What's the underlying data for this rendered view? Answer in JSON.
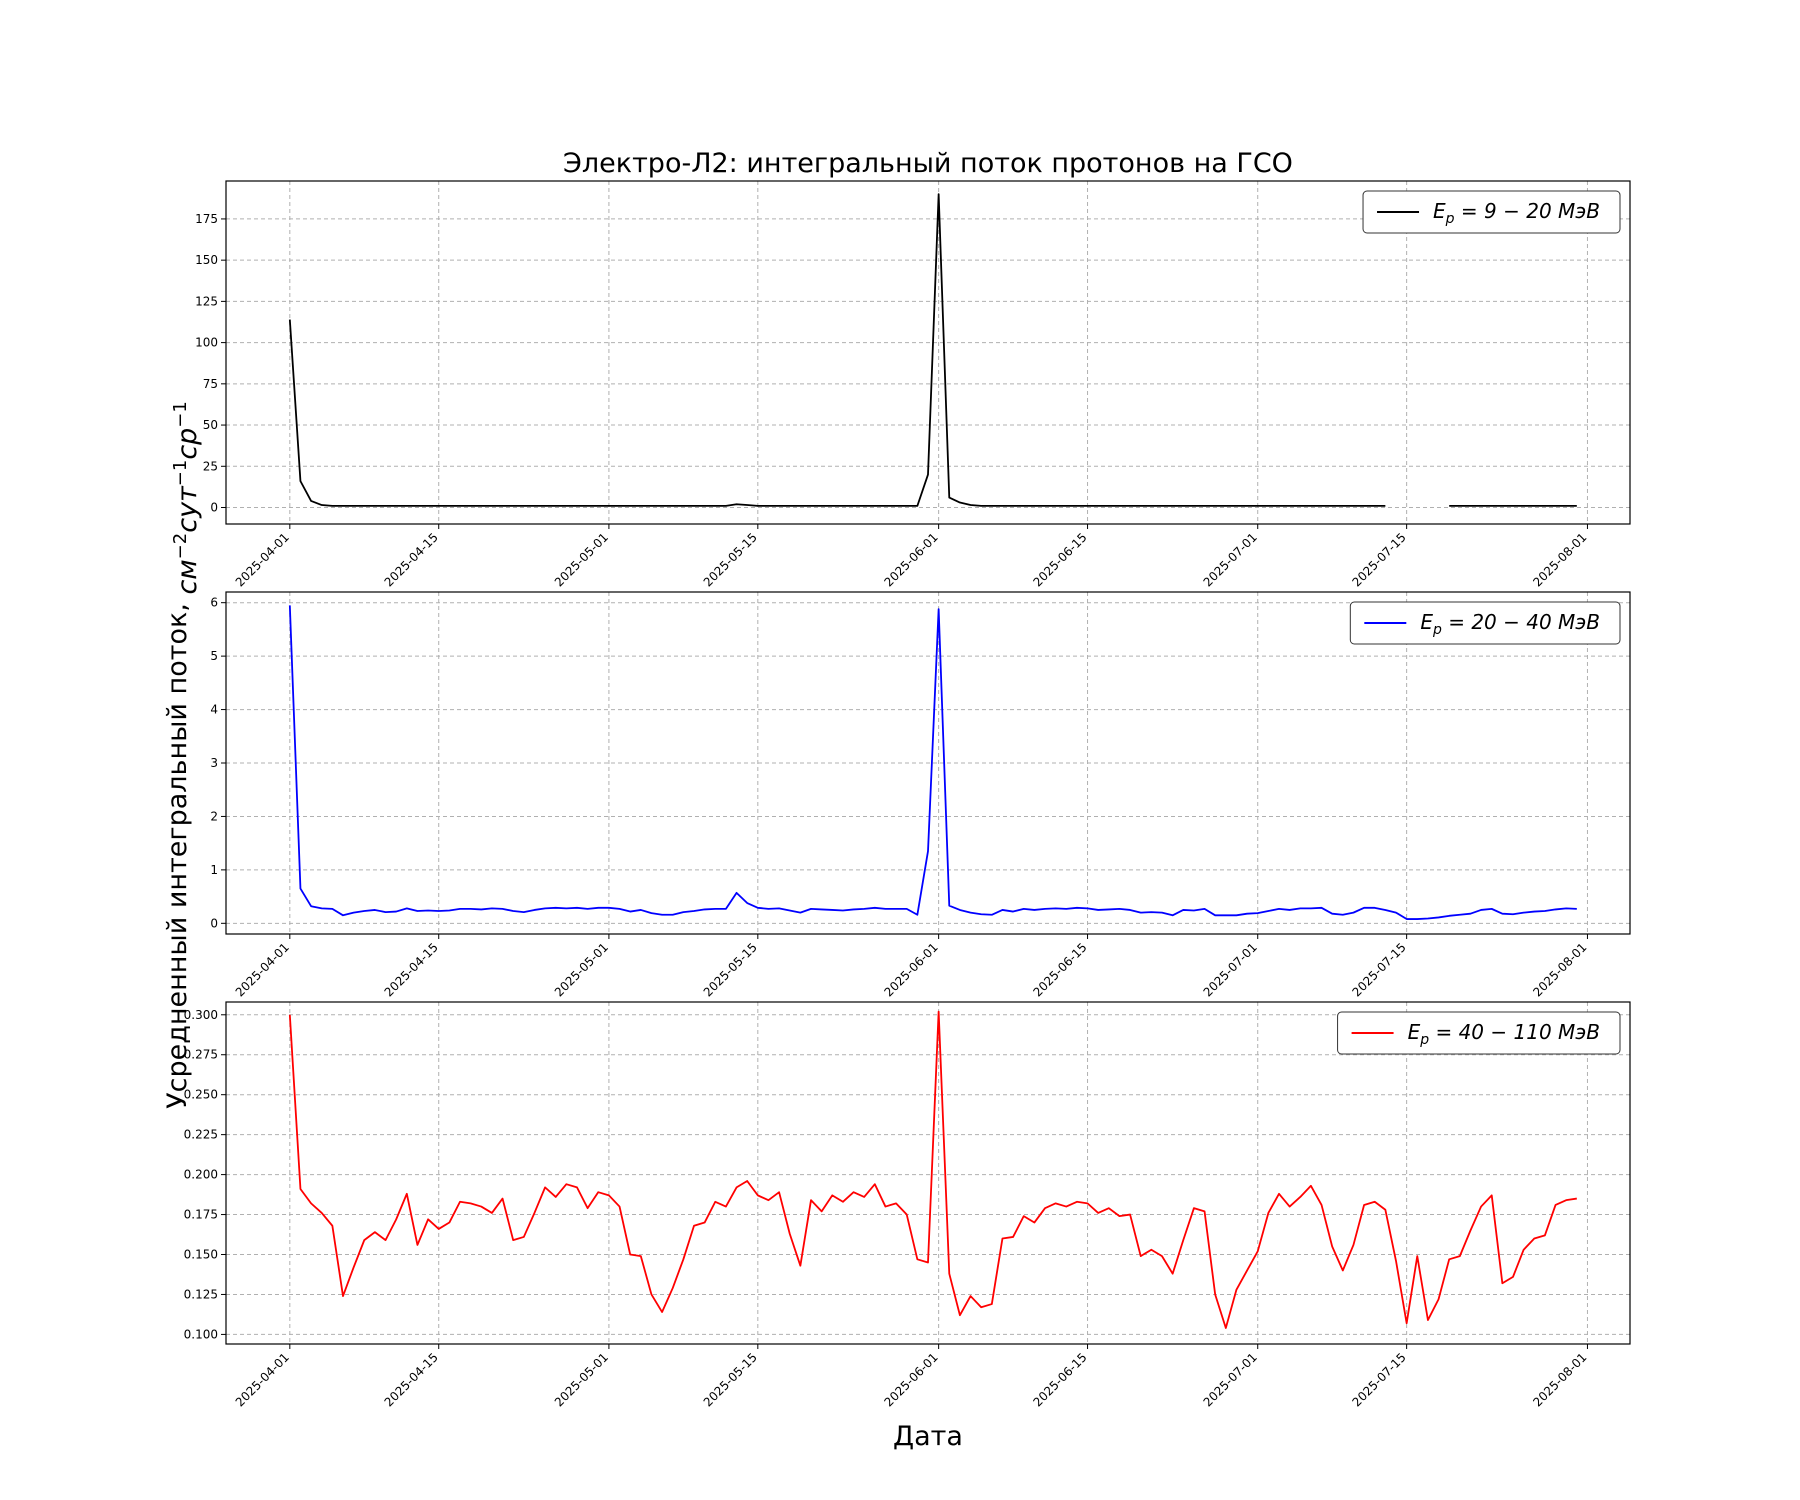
{
  "chart_data": [
    {
      "type": "line",
      "title": "Электро-Л2: интегральный поток протонов на ГСО",
      "color": "#000000",
      "legend": {
        "label": "E_p = 9 − 20 МэВ",
        "sub": "p",
        "range": "9 − 20",
        "unit": "МэВ",
        "placement": "top-right"
      },
      "ylim": [
        -10,
        198
      ],
      "yticks": [
        0,
        25,
        50,
        75,
        100,
        125,
        150,
        175
      ],
      "y": [
        114,
        16,
        4,
        1.5,
        1,
        1,
        1,
        1,
        1,
        1,
        1,
        1,
        1,
        1,
        1,
        1,
        1,
        1,
        1,
        1,
        1,
        1,
        1,
        1,
        1,
        1,
        1,
        1,
        1,
        1,
        1,
        1,
        1,
        1,
        1,
        1,
        1,
        1,
        1,
        1,
        1,
        1,
        2,
        1.5,
        1,
        1,
        1,
        1,
        1,
        1,
        1,
        1,
        1,
        1,
        1,
        1,
        1,
        1,
        1,
        1,
        20,
        190,
        6,
        3,
        1.5,
        1,
        1,
        1,
        1,
        1,
        1,
        1,
        1,
        1,
        1,
        1,
        1,
        1,
        1,
        1,
        1,
        1,
        1,
        1,
        1,
        1,
        1,
        1,
        1,
        1,
        1,
        1,
        1,
        1,
        1,
        1,
        1,
        1,
        1,
        1,
        1,
        1,
        1,
        1,
        null,
        null,
        null,
        null,
        null,
        1,
        1,
        1,
        1,
        1,
        1,
        1,
        1,
        1,
        1,
        1,
        1,
        1
      ]
    },
    {
      "type": "line",
      "title": "",
      "color": "#0000ff",
      "legend": {
        "label": "E_p = 20 − 40 МэВ",
        "sub": "p",
        "range": "20 − 40",
        "unit": "МэВ",
        "placement": "top-right"
      },
      "ylim": [
        -0.2,
        6.2
      ],
      "yticks": [
        0,
        1,
        2,
        3,
        4,
        5,
        6
      ],
      "y": [
        5.95,
        0.65,
        0.32,
        0.28,
        0.27,
        0.15,
        0.2,
        0.23,
        0.25,
        0.21,
        0.22,
        0.28,
        0.23,
        0.24,
        0.23,
        0.24,
        0.27,
        0.27,
        0.26,
        0.28,
        0.27,
        0.23,
        0.21,
        0.25,
        0.28,
        0.29,
        0.28,
        0.29,
        0.27,
        0.29,
        0.29,
        0.27,
        0.22,
        0.25,
        0.19,
        0.16,
        0.16,
        0.21,
        0.23,
        0.26,
        0.27,
        0.27,
        0.57,
        0.38,
        0.29,
        0.27,
        0.28,
        0.24,
        0.2,
        0.27,
        0.26,
        0.25,
        0.24,
        0.26,
        0.27,
        0.29,
        0.27,
        0.27,
        0.27,
        0.16,
        1.35,
        5.88,
        0.33,
        0.25,
        0.2,
        0.17,
        0.16,
        0.25,
        0.22,
        0.27,
        0.25,
        0.27,
        0.28,
        0.27,
        0.29,
        0.28,
        0.25,
        0.26,
        0.27,
        0.25,
        0.2,
        0.21,
        0.2,
        0.15,
        0.25,
        0.24,
        0.27,
        0.15,
        0.15,
        0.15,
        0.18,
        0.19,
        0.23,
        0.27,
        0.25,
        0.28,
        0.28,
        0.29,
        0.18,
        0.16,
        0.2,
        0.29,
        0.29,
        0.25,
        0.2,
        0.08,
        0.08,
        0.09,
        0.11,
        0.14,
        0.16,
        0.18,
        0.25,
        0.27,
        0.18,
        0.17,
        0.2,
        0.22,
        0.23,
        0.26,
        0.28,
        0.27
      ]
    },
    {
      "type": "line",
      "title": "",
      "color": "#ff0000",
      "legend": {
        "label": "E_p = 40 − 110 МэВ",
        "sub": "p",
        "range": "40 − 110",
        "unit": "МэВ",
        "placement": "top-right"
      },
      "ylim": [
        0.094,
        0.308
      ],
      "yticks": [
        0.1,
        0.125,
        0.15,
        0.175,
        0.2,
        0.225,
        0.25,
        0.275,
        0.3
      ],
      "ytick_labels": [
        "0.100",
        "0.125",
        "0.150",
        "0.175",
        "0.200",
        "0.225",
        "0.250",
        "0.275",
        "0.300"
      ],
      "y": [
        0.3,
        0.191,
        0.182,
        0.176,
        0.168,
        0.124,
        0.142,
        0.159,
        0.164,
        0.159,
        0.172,
        0.188,
        0.156,
        0.172,
        0.166,
        0.17,
        0.183,
        0.182,
        0.18,
        0.176,
        0.185,
        0.159,
        0.161,
        0.176,
        0.192,
        0.186,
        0.194,
        0.192,
        0.179,
        0.189,
        0.187,
        0.18,
        0.15,
        0.149,
        0.125,
        0.114,
        0.129,
        0.147,
        0.168,
        0.17,
        0.183,
        0.18,
        0.192,
        0.196,
        0.187,
        0.184,
        0.189,
        0.163,
        0.143,
        0.184,
        0.177,
        0.187,
        0.183,
        0.189,
        0.186,
        0.194,
        0.18,
        0.182,
        0.175,
        0.147,
        0.145,
        0.302,
        0.138,
        0.112,
        0.124,
        0.117,
        0.119,
        0.16,
        0.161,
        0.174,
        0.17,
        0.179,
        0.182,
        0.18,
        0.183,
        0.182,
        0.176,
        0.179,
        0.174,
        0.175,
        0.149,
        0.153,
        0.149,
        0.138,
        0.159,
        0.179,
        0.177,
        0.125,
        0.104,
        0.128,
        0.14,
        0.152,
        0.176,
        0.188,
        0.18,
        0.186,
        0.193,
        0.181,
        0.155,
        0.14,
        0.156,
        0.181,
        0.183,
        0.178,
        0.146,
        0.107,
        0.149,
        0.109,
        0.122,
        0.147,
        0.149,
        0.165,
        0.18,
        0.187,
        0.132,
        0.136,
        0.153,
        0.16,
        0.162,
        0.181,
        0.184,
        0.185
      ]
    }
  ],
  "x": {
    "start": "2025-04-01",
    "end": "2025-07-31",
    "xlim": [
      "2025-03-26",
      "2025-08-05"
    ],
    "ticks": [
      "2025-04-01",
      "2025-04-15",
      "2025-05-01",
      "2025-05-15",
      "2025-06-01",
      "2025-06-15",
      "2025-07-01",
      "2025-07-15",
      "2025-08-01"
    ]
  },
  "xlabel": "Дата",
  "ylabel": "Усредненный интегральный поток, см⁻² сут⁻¹ ср⁻¹",
  "grid": true
}
